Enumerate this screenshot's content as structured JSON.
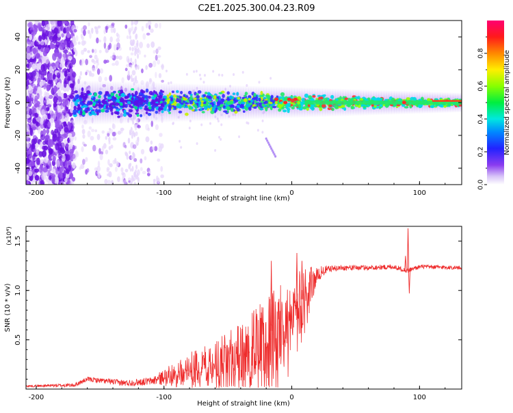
{
  "title": "C2E1.2025.300.04.23.R09",
  "colors": {
    "snr_line": "#ee2b2b",
    "scatter_low": "#e6d6fb",
    "scatter_mid": "#9a55ee",
    "scatter_high": "#6a10e0"
  },
  "chart_data": [
    {
      "type": "heatmap",
      "name": "spectrogram",
      "xlabel": "Height of straight line (km)",
      "ylabel": "Frequency (Hz)",
      "xlim": [
        -208,
        133
      ],
      "ylim": [
        -50,
        50
      ],
      "xticks": [
        -200,
        -100,
        0,
        100
      ],
      "xtick_labels": [
        "-200",
        "-100",
        "0",
        "100"
      ],
      "yticks": [
        -40,
        -20,
        0,
        20,
        40
      ],
      "ytick_labels": [
        "-40",
        "-20",
        "0",
        "20",
        "40"
      ],
      "colorbar": {
        "label": "Normalized spectral amplitude",
        "range": [
          0,
          1
        ],
        "ticks": [
          0.0,
          0.2,
          0.4,
          0.6,
          0.8
        ],
        "tick_labels": [
          "0.0",
          "0.2",
          "0.4",
          "0.6",
          "0.8"
        ],
        "colormap": "rainbow (purple → blue → cyan → green → yellow → red → magenta)"
      },
      "features": {
        "signal_band_center_hz": 0,
        "band_halfwidth_start_hz": 10,
        "band_halfwidth_end_hz": 2,
        "broadband_noise_region_km": [
          -208,
          -170
        ],
        "scattered_noise_region_km": [
          -170,
          -100
        ]
      }
    },
    {
      "type": "line",
      "name": "snr",
      "xlabel": "Height of straight line (km)",
      "ylabel": "SNR (10 * v/v)",
      "scale_label": "(x10⁴)",
      "xlim": [
        -208,
        133
      ],
      "ylim": [
        0,
        1.65
      ],
      "xticks": [
        -200,
        -100,
        0,
        100
      ],
      "xtick_labels": [
        "-200",
        "-100",
        "0",
        "100"
      ],
      "yticks": [
        0.5,
        1.0,
        1.5
      ],
      "ytick_labels": [
        "0.5",
        "1.0",
        "1.5"
      ],
      "envelope": {
        "x": [
          -208,
          -170,
          -160,
          -130,
          -110,
          -100,
          -90,
          -75,
          -60,
          -45,
          -30,
          -20,
          -10,
          0,
          10,
          20,
          25,
          30,
          40,
          60,
          80,
          90,
          100,
          133
        ],
        "y": [
          0.03,
          0.04,
          0.1,
          0.06,
          0.08,
          0.12,
          0.18,
          0.25,
          0.3,
          0.35,
          0.45,
          0.55,
          0.65,
          0.75,
          0.95,
          1.15,
          1.2,
          1.22,
          1.23,
          1.23,
          1.24,
          1.2,
          1.24,
          1.23
        ]
      },
      "noise_amplitude": {
        "x": [
          -208,
          -170,
          -110,
          -100,
          -60,
          -30,
          -10,
          10,
          20,
          30,
          133
        ],
        "y": [
          0.01,
          0.02,
          0.04,
          0.08,
          0.2,
          0.35,
          0.45,
          0.3,
          0.08,
          0.03,
          0.02
        ]
      },
      "spikes": [
        {
          "x": -16,
          "y": 1.3
        },
        {
          "x": 4,
          "y": 1.38
        },
        {
          "x": 8,
          "y": 1.3
        },
        {
          "x": 89,
          "y": 1.35
        },
        {
          "x": 91,
          "y": 1.63
        },
        {
          "x": 92,
          "y": 0.97
        }
      ]
    }
  ]
}
